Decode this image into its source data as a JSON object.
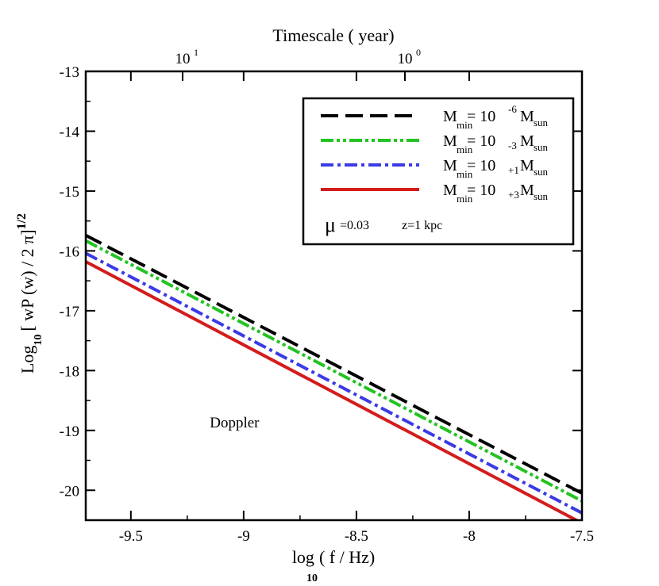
{
  "chart_data": {
    "type": "line",
    "title": "",
    "top_axis": {
      "label": "Timescale ( year)",
      "ticks": [
        {
          "base": "10",
          "exp": "1"
        },
        {
          "base": "10",
          "exp": "0"
        }
      ]
    },
    "xlabel_main": "log",
    "xlabel_sub": "10",
    "xlabel_rest": "( f / Hz)",
    "ylabel_main": "Log",
    "ylabel_sub": "10",
    "ylabel_rest": "[ wP (w) / 2 π]",
    "ylabel_sup": "1/2",
    "xlim": [
      -9.7,
      -7.5
    ],
    "ylim": [
      -20.5,
      -13
    ],
    "xticks": [
      -9.5,
      -9,
      -8.5,
      -8,
      -7.5
    ],
    "xtick_labels": [
      "-9.5",
      "-9",
      "-8.5",
      "-8",
      "-7.5"
    ],
    "yticks": [
      -13,
      -14,
      -15,
      -16,
      -17,
      -18,
      -19,
      -20
    ],
    "ytick_labels": [
      "-13",
      "-14",
      "-15",
      "-16",
      "-17",
      "-18",
      "-19",
      "-20"
    ],
    "grid": false,
    "legend_position": "top-right",
    "series": [
      {
        "label_main": "M",
        "label_sub": "min",
        "label_eq": "= 10",
        "label_exp": "-6",
        "label_m": "M",
        "label_msub": "sun",
        "color": "#000000",
        "style": "dash",
        "x": [
          -9.7,
          -7.5
        ],
        "y": [
          -15.74,
          -20.05
        ]
      },
      {
        "label_main": "M",
        "label_sub": "min",
        "label_eq": "= 10",
        "label_exp": "-3",
        "label_m": "M",
        "label_msub": "sun",
        "color": "#22c322",
        "style": "dashdotdot",
        "x": [
          -9.7,
          -7.5
        ],
        "y": [
          -15.83,
          -20.18
        ]
      },
      {
        "label_main": "M",
        "label_sub": "min",
        "label_eq": "= 10",
        "label_exp": "+1",
        "label_m": "M",
        "label_msub": "sun",
        "color": "#3a3ae6",
        "style": "dashdot",
        "x": [
          -9.7,
          -7.5
        ],
        "y": [
          -16.04,
          -20.38
        ]
      },
      {
        "label_main": "M",
        "label_sub": "min",
        "label_eq": "= 10",
        "label_exp": "+3",
        "label_m": "M",
        "label_msub": "sun",
        "color": "#d41c1c",
        "style": "solid",
        "x": [
          -9.7,
          -7.5
        ],
        "y": [
          -16.18,
          -20.55
        ]
      }
    ],
    "legend_note_mu": "μ",
    "legend_note_mu_val": "=0.03",
    "legend_note_z": "z=1 kpc",
    "annotations": [
      {
        "text": "Doppler",
        "x": -9.15,
        "y": -18.95
      }
    ]
  }
}
